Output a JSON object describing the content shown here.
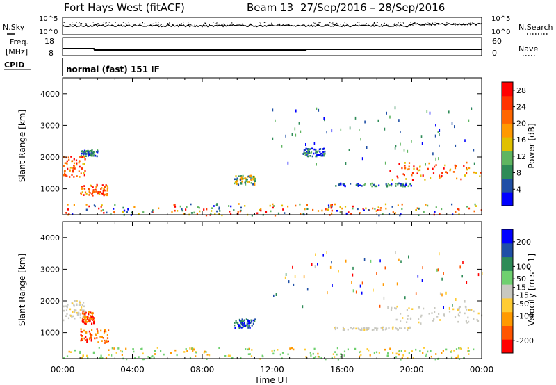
{
  "header": {
    "station": "Fort Hays West (fitACF)",
    "beam": "Beam 13",
    "dates": "27/Sep/2016 – 28/Sep/2016"
  },
  "aux": {
    "nsky_label": "N.Sky",
    "nsearch_label": "N.Search",
    "freq_label_line1": "Freq.",
    "freq_label_line2": "[MHz]",
    "nave_label": "Nave",
    "cpid_label": "CPID",
    "cpid_text": "normal (fast) 151 IF",
    "noise_left_ticks": [
      "10^5",
      "10^0"
    ],
    "noise_right_ticks": [
      "10^5",
      "10^0"
    ],
    "freq_left_ticks": [
      "18",
      "8"
    ],
    "freq_right_ticks": [
      "60",
      "0"
    ]
  },
  "colors": {
    "power_scale": [
      "#0000ff",
      "#1f4fa6",
      "#2e8b57",
      "#5fb560",
      "#e0c000",
      "#ff9900",
      "#ff6600",
      "#ff3300",
      "#ff0000"
    ],
    "velocity_scale": [
      "#ff0000",
      "#ff5500",
      "#ff9900",
      "#ffcc33",
      "#c8c8c0",
      "#6fd06f",
      "#2e8b57",
      "#1f4fa6",
      "#0000ff"
    ]
  },
  "chart_data": [
    {
      "type": "heatmap",
      "name": "power",
      "xlabel": "",
      "ylabel": "Slant Range [km]",
      "x_ticks": [
        "00:00",
        "04:00",
        "08:00",
        "12:00",
        "16:00",
        "20:00",
        "00:00"
      ],
      "y_ticks": [
        1000,
        2000,
        3000,
        4000
      ],
      "xlim_hours": [
        0,
        24
      ],
      "ylim_km": [
        180,
        4500
      ],
      "colorbar": {
        "label": "Power [dB]",
        "ticks": [
          4,
          8,
          12,
          16,
          20,
          24,
          28
        ],
        "range": [
          0,
          30
        ]
      },
      "echo_regions": [
        {
          "t_start": 0.0,
          "t_end": 1.3,
          "r_low": 1400,
          "r_high": 2050,
          "level": "high"
        },
        {
          "t_start": 1.0,
          "t_end": 2.6,
          "r_low": 800,
          "r_high": 1150,
          "level": "high"
        },
        {
          "t_start": 1.0,
          "t_end": 2.0,
          "r_low": 2050,
          "r_high": 2250,
          "level": "low"
        },
        {
          "t_start": 9.8,
          "t_end": 11.0,
          "r_low": 1150,
          "r_high": 1450,
          "level": "mid"
        },
        {
          "t_start": 13.7,
          "t_end": 15.0,
          "r_low": 2050,
          "r_high": 2300,
          "level": "low"
        },
        {
          "t_start": 15.5,
          "t_end": 20.0,
          "r_low": 1100,
          "r_high": 1200,
          "level": "low"
        },
        {
          "t_start": 18.7,
          "t_end": 24.0,
          "r_low": 1300,
          "r_high": 1850,
          "level": "high"
        },
        {
          "t_start": 0.0,
          "t_end": 24.0,
          "r_low": 180,
          "r_high": 550,
          "level": "mixed"
        }
      ]
    },
    {
      "type": "heatmap",
      "name": "velocity",
      "xlabel": "Time UT",
      "ylabel": "Slant Range [km]",
      "x_ticks": [
        "00:00",
        "04:00",
        "08:00",
        "12:00",
        "16:00",
        "20:00",
        "00:00"
      ],
      "y_ticks": [
        1000,
        2000,
        3000,
        4000
      ],
      "xlim_hours": [
        0,
        24
      ],
      "ylim_km": [
        180,
        4500
      ],
      "colorbar": {
        "label": "Velocity [m s^-1]",
        "ticks": [
          200,
          100,
          50,
          15,
          -15,
          -50,
          -100,
          -200
        ],
        "range": [
          -250,
          250
        ]
      },
      "echo_regions": [
        {
          "t_start": 0.0,
          "t_end": 1.3,
          "r_low": 1400,
          "r_high": 2050,
          "level": "ground"
        },
        {
          "t_start": 1.0,
          "t_end": 2.6,
          "r_low": 700,
          "r_high": 1150,
          "level": "away"
        },
        {
          "t_start": 1.1,
          "t_end": 1.8,
          "r_low": 1300,
          "r_high": 1700,
          "level": "away"
        },
        {
          "t_start": 9.8,
          "t_end": 11.0,
          "r_low": 1150,
          "r_high": 1450,
          "level": "toward"
        },
        {
          "t_start": 15.5,
          "t_end": 20.0,
          "r_low": 1100,
          "r_high": 1200,
          "level": "ground"
        },
        {
          "t_start": 18.7,
          "t_end": 24.0,
          "r_low": 1300,
          "r_high": 1850,
          "level": "ground"
        },
        {
          "t_start": 0.0,
          "t_end": 24.0,
          "r_low": 180,
          "r_high": 550,
          "level": "low-green"
        }
      ]
    }
  ]
}
